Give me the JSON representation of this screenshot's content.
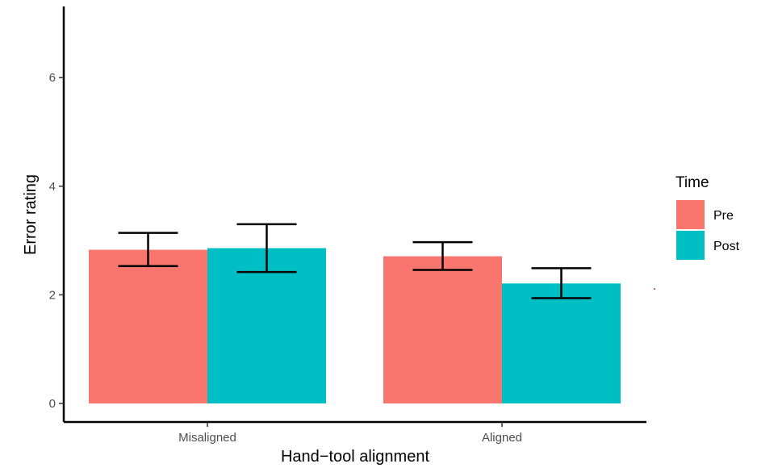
{
  "chart_data": {
    "type": "bar",
    "xlabel": "Hand−tool alignment",
    "ylabel": "Error rating",
    "categories": [
      "Misaligned",
      "Aligned"
    ],
    "ylim": [
      0,
      7.2
    ],
    "yticks": [
      0,
      2,
      4,
      6
    ],
    "grid": false,
    "legend": {
      "title": "Time",
      "placement": "right"
    },
    "series": [
      {
        "name": "Pre",
        "color": "#F8766D",
        "values": [
          2.83,
          2.71
        ],
        "error_low": [
          2.53,
          2.46
        ],
        "error_high": [
          3.14,
          2.97
        ]
      },
      {
        "name": "Post",
        "color": "#00BFC4",
        "values": [
          2.86,
          2.21
        ],
        "error_low": [
          2.42,
          1.94
        ],
        "error_high": [
          3.3,
          2.49
        ]
      }
    ]
  }
}
